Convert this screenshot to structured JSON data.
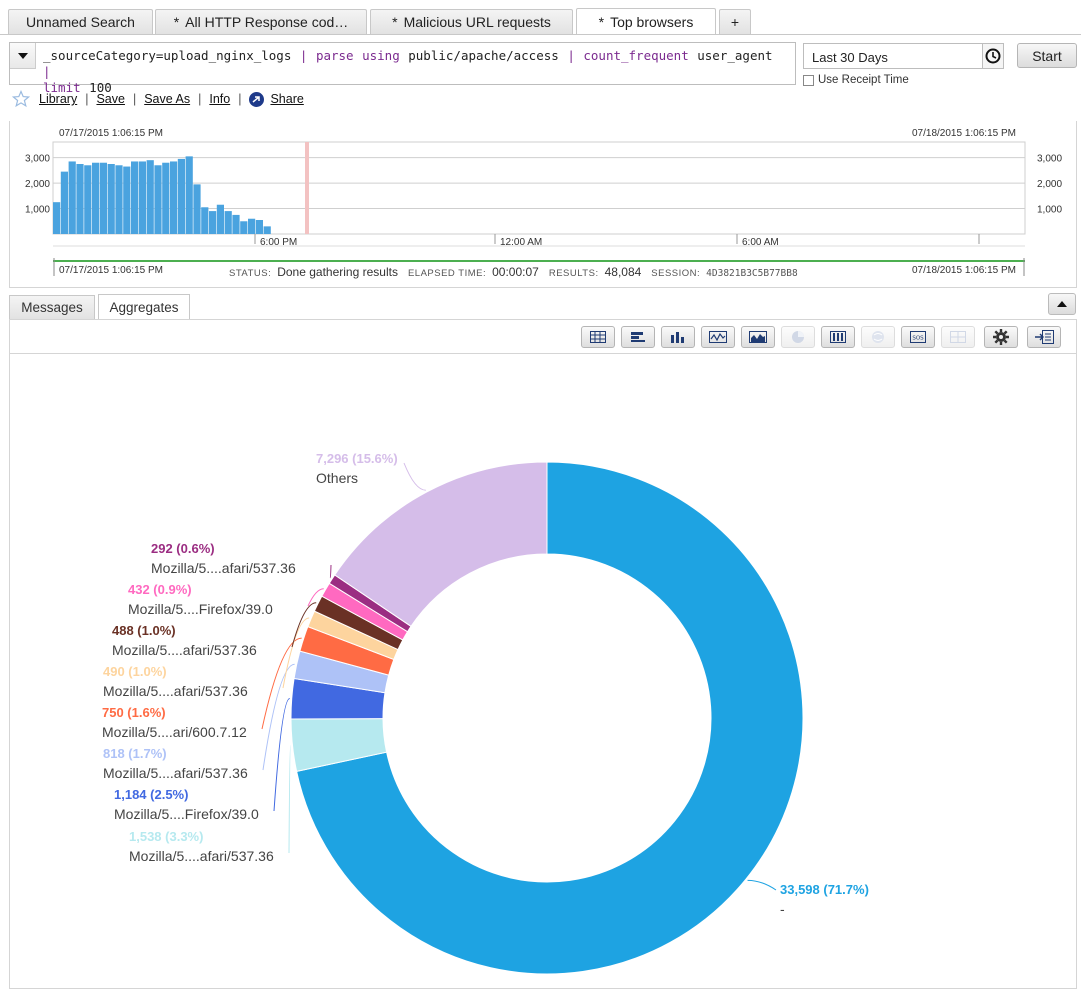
{
  "tabs": [
    {
      "label": "Unnamed Search",
      "modified": false
    },
    {
      "label": "All HTTP Response cod…",
      "modified": true
    },
    {
      "label": "Malicious URL requests",
      "modified": true
    },
    {
      "label": "Top browsers",
      "modified": true,
      "active": true
    },
    {
      "label": "+",
      "modified": false
    }
  ],
  "modified_marker": "*",
  "query": {
    "segments": [
      {
        "text": "_sourceCategory=upload_nginx_logs ",
        "kind": "plain"
      },
      {
        "text": "| ",
        "kind": "pipe"
      },
      {
        "text": "parse using",
        "kind": "kw"
      },
      {
        "text": " public/apache/access ",
        "kind": "plain"
      },
      {
        "text": "| ",
        "kind": "pipe"
      },
      {
        "text": "count_frequent",
        "kind": "kw"
      },
      {
        "text": " user_agent ",
        "kind": "plain"
      },
      {
        "text": "|",
        "kind": "pipe"
      },
      {
        "text": "limit",
        "kind": "kw"
      },
      {
        "text": " 100",
        "kind": "plain"
      }
    ]
  },
  "time_range": "Last 30 Days",
  "start_label": "Start",
  "receipt_label": "Use Receipt Time",
  "links": {
    "library": "Library",
    "save": "Save",
    "save_as": "Save As",
    "info": "Info",
    "share": "Share",
    "sep": "|"
  },
  "histogram": {
    "start_ts": "07/17/2015 1:06:15 PM",
    "end_ts": "07/18/2015 1:06:15 PM",
    "y_ticks": [
      "3,000",
      "2,000",
      "1,000"
    ],
    "y_tick_values": [
      3000,
      2000,
      1000
    ],
    "y_max": 3300,
    "x_labels": [
      "6:00 PM",
      "12:00 AM",
      "6:00 AM"
    ],
    "bars": [
      1250,
      2450,
      2850,
      2750,
      2700,
      2800,
      2800,
      2750,
      2700,
      2650,
      2850,
      2850,
      2900,
      2700,
      2800,
      2850,
      2950,
      3050,
      1950,
      1050,
      900,
      1150,
      900,
      750,
      500,
      600,
      550,
      300
    ],
    "bar_color": "#4aa3df",
    "marker_color": "#f3c2c2"
  },
  "status": {
    "status_label": "STATUS:",
    "status_value": "Done gathering results",
    "elapsed_label": "ELAPSED TIME:",
    "elapsed_value": "00:00:07",
    "results_label": "RESULTS:",
    "results_value": "48,084",
    "session_label": "SESSION:",
    "session_value": "4D3821B3C5B77BB8"
  },
  "result_tabs": {
    "messages": "Messages",
    "aggregates": "Aggregates"
  },
  "toolbar_icons": [
    "table-view-icon",
    "bar-chart-icon",
    "column-chart-icon",
    "line-chart-icon",
    "area-chart-icon",
    "pie-chart-icon",
    "box-chart-icon",
    "map-chart-icon",
    "sos-icon",
    "combo-chart-icon",
    "gear-icon",
    "add-to-dashboard-icon"
  ],
  "chart_data": {
    "type": "pie",
    "donut": true,
    "total": 46886,
    "slices": [
      {
        "value": 33598,
        "pct": "71.7%",
        "label": "33,598 (71.7%)",
        "name": "-",
        "color": "#1ea3e2"
      },
      {
        "value": 1538,
        "pct": "3.3%",
        "label": "1,538 (3.3%)",
        "name": "Mozilla/5....afari/537.36",
        "color": "#b6e9ef"
      },
      {
        "value": 1184,
        "pct": "2.5%",
        "label": "1,184 (2.5%)",
        "name": "Mozilla/5....Firefox/39.0",
        "color": "#4169e1"
      },
      {
        "value": 818,
        "pct": "1.7%",
        "label": "818 (1.7%)",
        "name": "Mozilla/5....afari/537.36",
        "color": "#aec2f7"
      },
      {
        "value": 750,
        "pct": "1.6%",
        "label": "750 (1.6%)",
        "name": "Mozilla/5....ari/600.7.12",
        "color": "#ff6b44"
      },
      {
        "value": 490,
        "pct": "1.0%",
        "label": "490 (1.0%)",
        "name": "Mozilla/5....afari/537.36",
        "color": "#fdd49e"
      },
      {
        "value": 488,
        "pct": "1.0%",
        "label": "488 (1.0%)",
        "name": "Mozilla/5....afari/537.36",
        "color": "#6a3125"
      },
      {
        "value": 432,
        "pct": "0.9%",
        "label": "432 (0.9%)",
        "name": "Mozilla/5....Firefox/39.0",
        "color": "#ff69c0"
      },
      {
        "value": 292,
        "pct": "0.6%",
        "label": "292 (0.6%)",
        "name": "Mozilla/5....afari/537.36",
        "color": "#9b2d82"
      },
      {
        "value": 7296,
        "pct": "15.6%",
        "label": "7,296 (15.6%)",
        "name": "Others",
        "color": "#d5bde9"
      }
    ]
  }
}
